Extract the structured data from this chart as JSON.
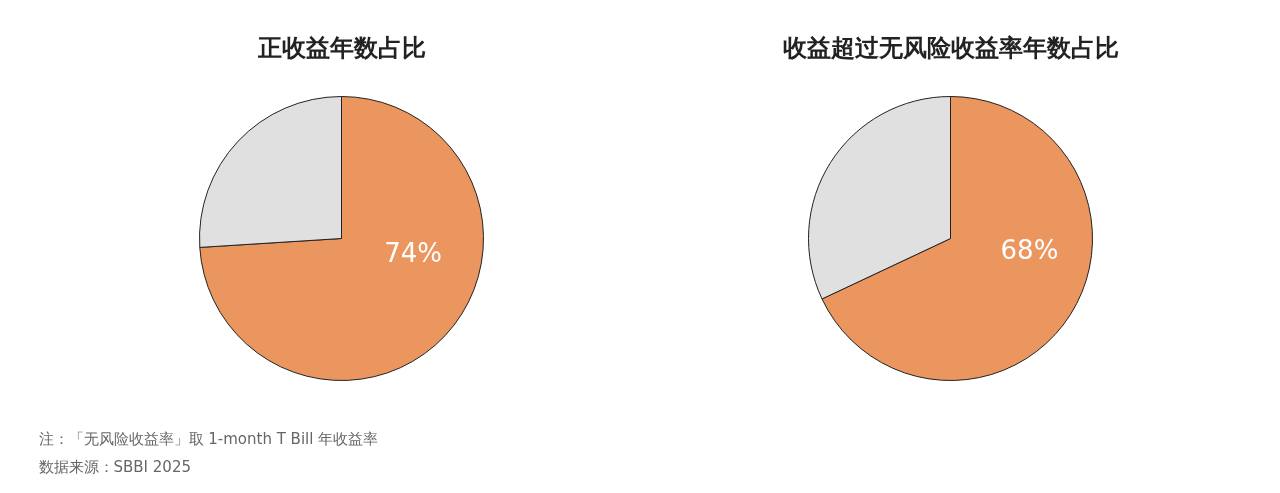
{
  "chart_data": [
    {
      "type": "pie",
      "title": "正收益年数占比",
      "categories": [
        null,
        null
      ],
      "values": [
        74,
        26
      ],
      "colors": [
        "#eb955f",
        "#e0e0e0"
      ],
      "value_labels": [
        "74%",
        null
      ],
      "annotations": [
        "注：「无风险收益率」取 1-month T Bill 年收益率",
        "数据来源：SBBI 2025"
      ]
    },
    {
      "type": "pie",
      "title": "收益超过无风险收益率年数占比",
      "categories": [
        null,
        null
      ],
      "values": [
        68,
        32
      ],
      "colors": [
        "#eb955f",
        "#e0e0e0"
      ],
      "value_labels": [
        "68%",
        null
      ]
    }
  ]
}
